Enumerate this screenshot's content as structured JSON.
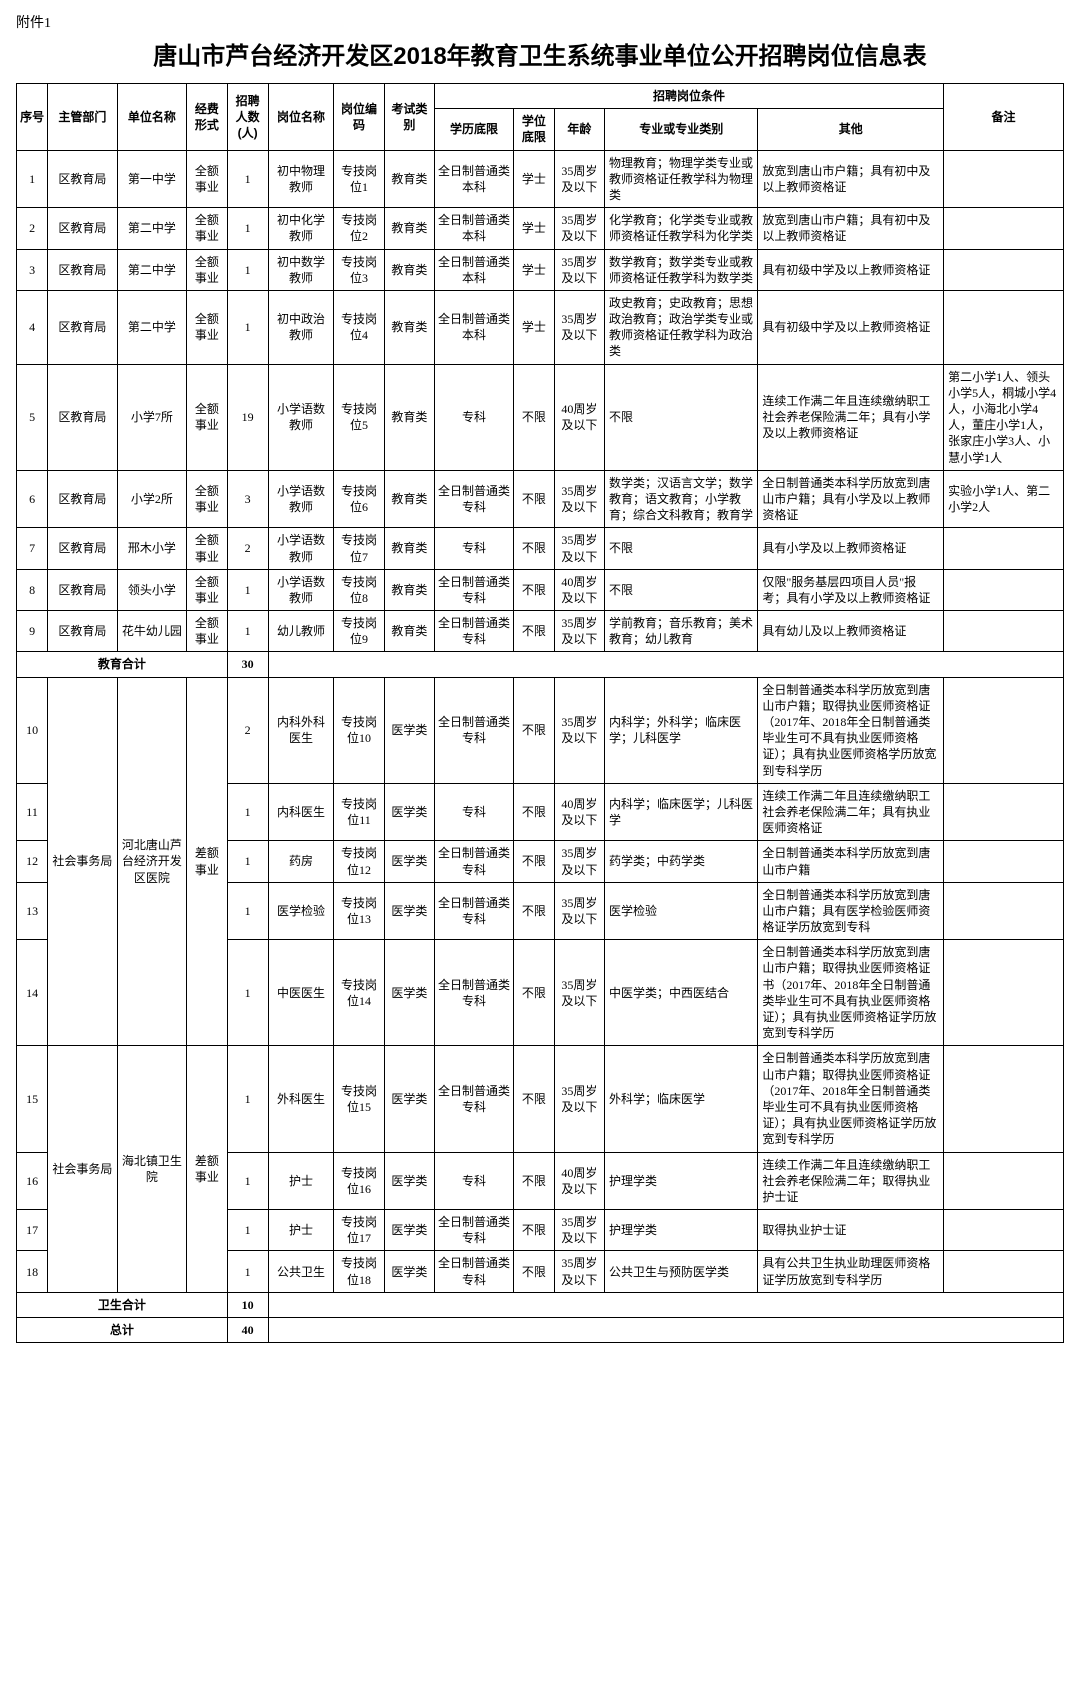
{
  "attachment_label": "附件1",
  "title": "唐山市芦台经济开发区2018年教育卫生系统事业单位公开招聘岗位信息表",
  "headers": {
    "seq": "序号",
    "dept": "主管部门",
    "unit": "单位名称",
    "fund": "经费形式",
    "num": "招聘人数(人)",
    "pos": "岗位名称",
    "code": "岗位编码",
    "exam": "考试类别",
    "cond_group": "招聘岗位条件",
    "edu": "学历底限",
    "deg": "学位底限",
    "age": "年龄",
    "major": "专业或专业类别",
    "other": "其他",
    "remark": "备注"
  },
  "edu_subtotal": {
    "label": "教育合计",
    "count": "30"
  },
  "health_subtotal": {
    "label": "卫生合计",
    "count": "10"
  },
  "grand_total": {
    "label": "总计",
    "count": "40"
  },
  "rows": [
    {
      "seq": "1",
      "dept": "区教育局",
      "unit": "第一中学",
      "fund": "全额事业",
      "num": "1",
      "pos": "初中物理教师",
      "code": "专技岗位1",
      "exam": "教育类",
      "edu": "全日制普通类本科",
      "deg": "学士",
      "age": "35周岁及以下",
      "major": "物理教育；物理学类专业或教师资格证任教学科为物理类",
      "other": "放宽到唐山市户籍；具有初中及以上教师资格证",
      "remark": ""
    },
    {
      "seq": "2",
      "dept": "区教育局",
      "unit": "第二中学",
      "fund": "全额事业",
      "num": "1",
      "pos": "初中化学教师",
      "code": "专技岗位2",
      "exam": "教育类",
      "edu": "全日制普通类本科",
      "deg": "学士",
      "age": "35周岁及以下",
      "major": "化学教育；化学类专业或教师资格证任教学科为化学类",
      "other": "放宽到唐山市户籍；具有初中及以上教师资格证",
      "remark": ""
    },
    {
      "seq": "3",
      "dept": "区教育局",
      "unit": "第二中学",
      "fund": "全额事业",
      "num": "1",
      "pos": "初中数学教师",
      "code": "专技岗位3",
      "exam": "教育类",
      "edu": "全日制普通类本科",
      "deg": "学士",
      "age": "35周岁及以下",
      "major": "数学教育；数学类专业或教师资格证任教学科为数学类",
      "other": "具有初级中学及以上教师资格证",
      "remark": ""
    },
    {
      "seq": "4",
      "dept": "区教育局",
      "unit": "第二中学",
      "fund": "全额事业",
      "num": "1",
      "pos": "初中政治教师",
      "code": "专技岗位4",
      "exam": "教育类",
      "edu": "全日制普通类本科",
      "deg": "学士",
      "age": "35周岁及以下",
      "major": "政史教育；史政教育；思想政治教育；政治学类专业或教师资格证任教学科为政治类",
      "other": "具有初级中学及以上教师资格证",
      "remark": ""
    },
    {
      "seq": "5",
      "dept": "区教育局",
      "unit": "小学7所",
      "fund": "全额事业",
      "num": "19",
      "pos": "小学语数教师",
      "code": "专技岗位5",
      "exam": "教育类",
      "edu": "专科",
      "deg": "不限",
      "age": "40周岁及以下",
      "major": "不限",
      "other": "连续工作满二年且连续缴纳职工社会养老保险满二年；具有小学及以上教师资格证",
      "remark": "第二小学1人、领头小学5人，桐城小学4人，小海北小学4人，董庄小学1人，张家庄小学3人、小慧小学1人"
    },
    {
      "seq": "6",
      "dept": "区教育局",
      "unit": "小学2所",
      "fund": "全额事业",
      "num": "3",
      "pos": "小学语数教师",
      "code": "专技岗位6",
      "exam": "教育类",
      "edu": "全日制普通类专科",
      "deg": "不限",
      "age": "35周岁及以下",
      "major": "数学类；汉语言文学；数学教育；语文教育；小学教育；综合文科教育；教育学",
      "other": "全日制普通类本科学历放宽到唐山市户籍；具有小学及以上教师资格证",
      "remark": "实验小学1人、第二小学2人"
    },
    {
      "seq": "7",
      "dept": "区教育局",
      "unit": "邢木小学",
      "fund": "全额事业",
      "num": "2",
      "pos": "小学语数教师",
      "code": "专技岗位7",
      "exam": "教育类",
      "edu": "专科",
      "deg": "不限",
      "age": "35周岁及以下",
      "major": "不限",
      "other": "具有小学及以上教师资格证",
      "remark": ""
    },
    {
      "seq": "8",
      "dept": "区教育局",
      "unit": "领头小学",
      "fund": "全额事业",
      "num": "1",
      "pos": "小学语数教师",
      "code": "专技岗位8",
      "exam": "教育类",
      "edu": "全日制普通类专科",
      "deg": "不限",
      "age": "40周岁及以下",
      "major": "不限",
      "other": "仅限\"服务基层四项目人员\"报考；具有小学及以上教师资格证",
      "remark": ""
    },
    {
      "seq": "9",
      "dept": "区教育局",
      "unit": "花牛幼儿园",
      "fund": "全额事业",
      "num": "1",
      "pos": "幼儿教师",
      "code": "专技岗位9",
      "exam": "教育类",
      "edu": "全日制普通类专科",
      "deg": "不限",
      "age": "35周岁及以下",
      "major": "学前教育；音乐教育；美术教育；幼儿教育",
      "other": "具有幼儿及以上教师资格证",
      "remark": ""
    }
  ],
  "health_rows": [
    {
      "seq": "10",
      "num": "2",
      "pos": "内科外科医生",
      "code": "专技岗位10",
      "exam": "医学类",
      "edu": "全日制普通类专科",
      "deg": "不限",
      "age": "35周岁及以下",
      "major": "内科学；外科学；临床医学；儿科医学",
      "other": "全日制普通类本科学历放宽到唐山市户籍；取得执业医师资格证（2017年、2018年全日制普通类毕业生可不具有执业医师资格证）；具有执业医师资格学历放宽到专科学历",
      "remark": ""
    },
    {
      "seq": "11",
      "num": "1",
      "pos": "内科医生",
      "code": "专技岗位11",
      "exam": "医学类",
      "edu": "专科",
      "deg": "不限",
      "age": "40周岁及以下",
      "major": "内科学；临床医学；儿科医学",
      "other": "连续工作满二年且连续缴纳职工社会养老保险满二年；具有执业医师资格证",
      "remark": ""
    },
    {
      "seq": "12",
      "num": "1",
      "pos": "药房",
      "code": "专技岗位12",
      "exam": "医学类",
      "edu": "全日制普通类专科",
      "deg": "不限",
      "age": "35周岁及以下",
      "major": "药学类；中药学类",
      "other": "全日制普通类本科学历放宽到唐山市户籍",
      "remark": ""
    },
    {
      "seq": "13",
      "num": "1",
      "pos": "医学检验",
      "code": "专技岗位13",
      "exam": "医学类",
      "edu": "全日制普通类专科",
      "deg": "不限",
      "age": "35周岁及以下",
      "major": "医学检验",
      "other": "全日制普通类本科学历放宽到唐山市户籍；具有医学检验医师资格证学历放宽到专科",
      "remark": ""
    },
    {
      "seq": "14",
      "num": "1",
      "pos": "中医医生",
      "code": "专技岗位14",
      "exam": "医学类",
      "edu": "全日制普通类专科",
      "deg": "不限",
      "age": "35周岁及以下",
      "major": "中医学类；中西医结合",
      "other": "全日制普通类本科学历放宽到唐山市户籍；取得执业医师资格证书（2017年、2018年全日制普通类毕业生可不具有执业医师资格证）；具有执业医师资格证学历放宽到专科学历",
      "remark": ""
    },
    {
      "seq": "15",
      "num": "1",
      "pos": "外科医生",
      "code": "专技岗位15",
      "exam": "医学类",
      "edu": "全日制普通类专科",
      "deg": "不限",
      "age": "35周岁及以下",
      "major": "外科学；临床医学",
      "other": "全日制普通类本科学历放宽到唐山市户籍；取得执业医师资格证（2017年、2018年全日制普通类毕业生可不具有执业医师资格证）；具有执业医师资格证学历放宽到专科学历",
      "remark": ""
    },
    {
      "seq": "16",
      "num": "1",
      "pos": "护士",
      "code": "专技岗位16",
      "exam": "医学类",
      "edu": "专科",
      "deg": "不限",
      "age": "40周岁及以下",
      "major": "护理学类",
      "other": "连续工作满二年且连续缴纳职工社会养老保险满二年；取得执业护士证",
      "remark": ""
    },
    {
      "seq": "17",
      "num": "1",
      "pos": "护士",
      "code": "专技岗位17",
      "exam": "医学类",
      "edu": "全日制普通类专科",
      "deg": "不限",
      "age": "35周岁及以下",
      "major": "护理学类",
      "other": "取得执业护士证",
      "remark": ""
    },
    {
      "seq": "18",
      "num": "1",
      "pos": "公共卫生",
      "code": "专技岗位18",
      "exam": "医学类",
      "edu": "全日制普通类专科",
      "deg": "不限",
      "age": "35周岁及以下",
      "major": "公共卫生与预防医学类",
      "other": "具有公共卫生执业助理医师资格证学历放宽到专科学历",
      "remark": ""
    }
  ],
  "health_dept": "社会事务局",
  "health_unit1": "河北唐山芦台经济开发区医院",
  "health_fund1": "差额事业",
  "health_unit2": "海北镇卫生院",
  "health_fund2": "差额事业"
}
